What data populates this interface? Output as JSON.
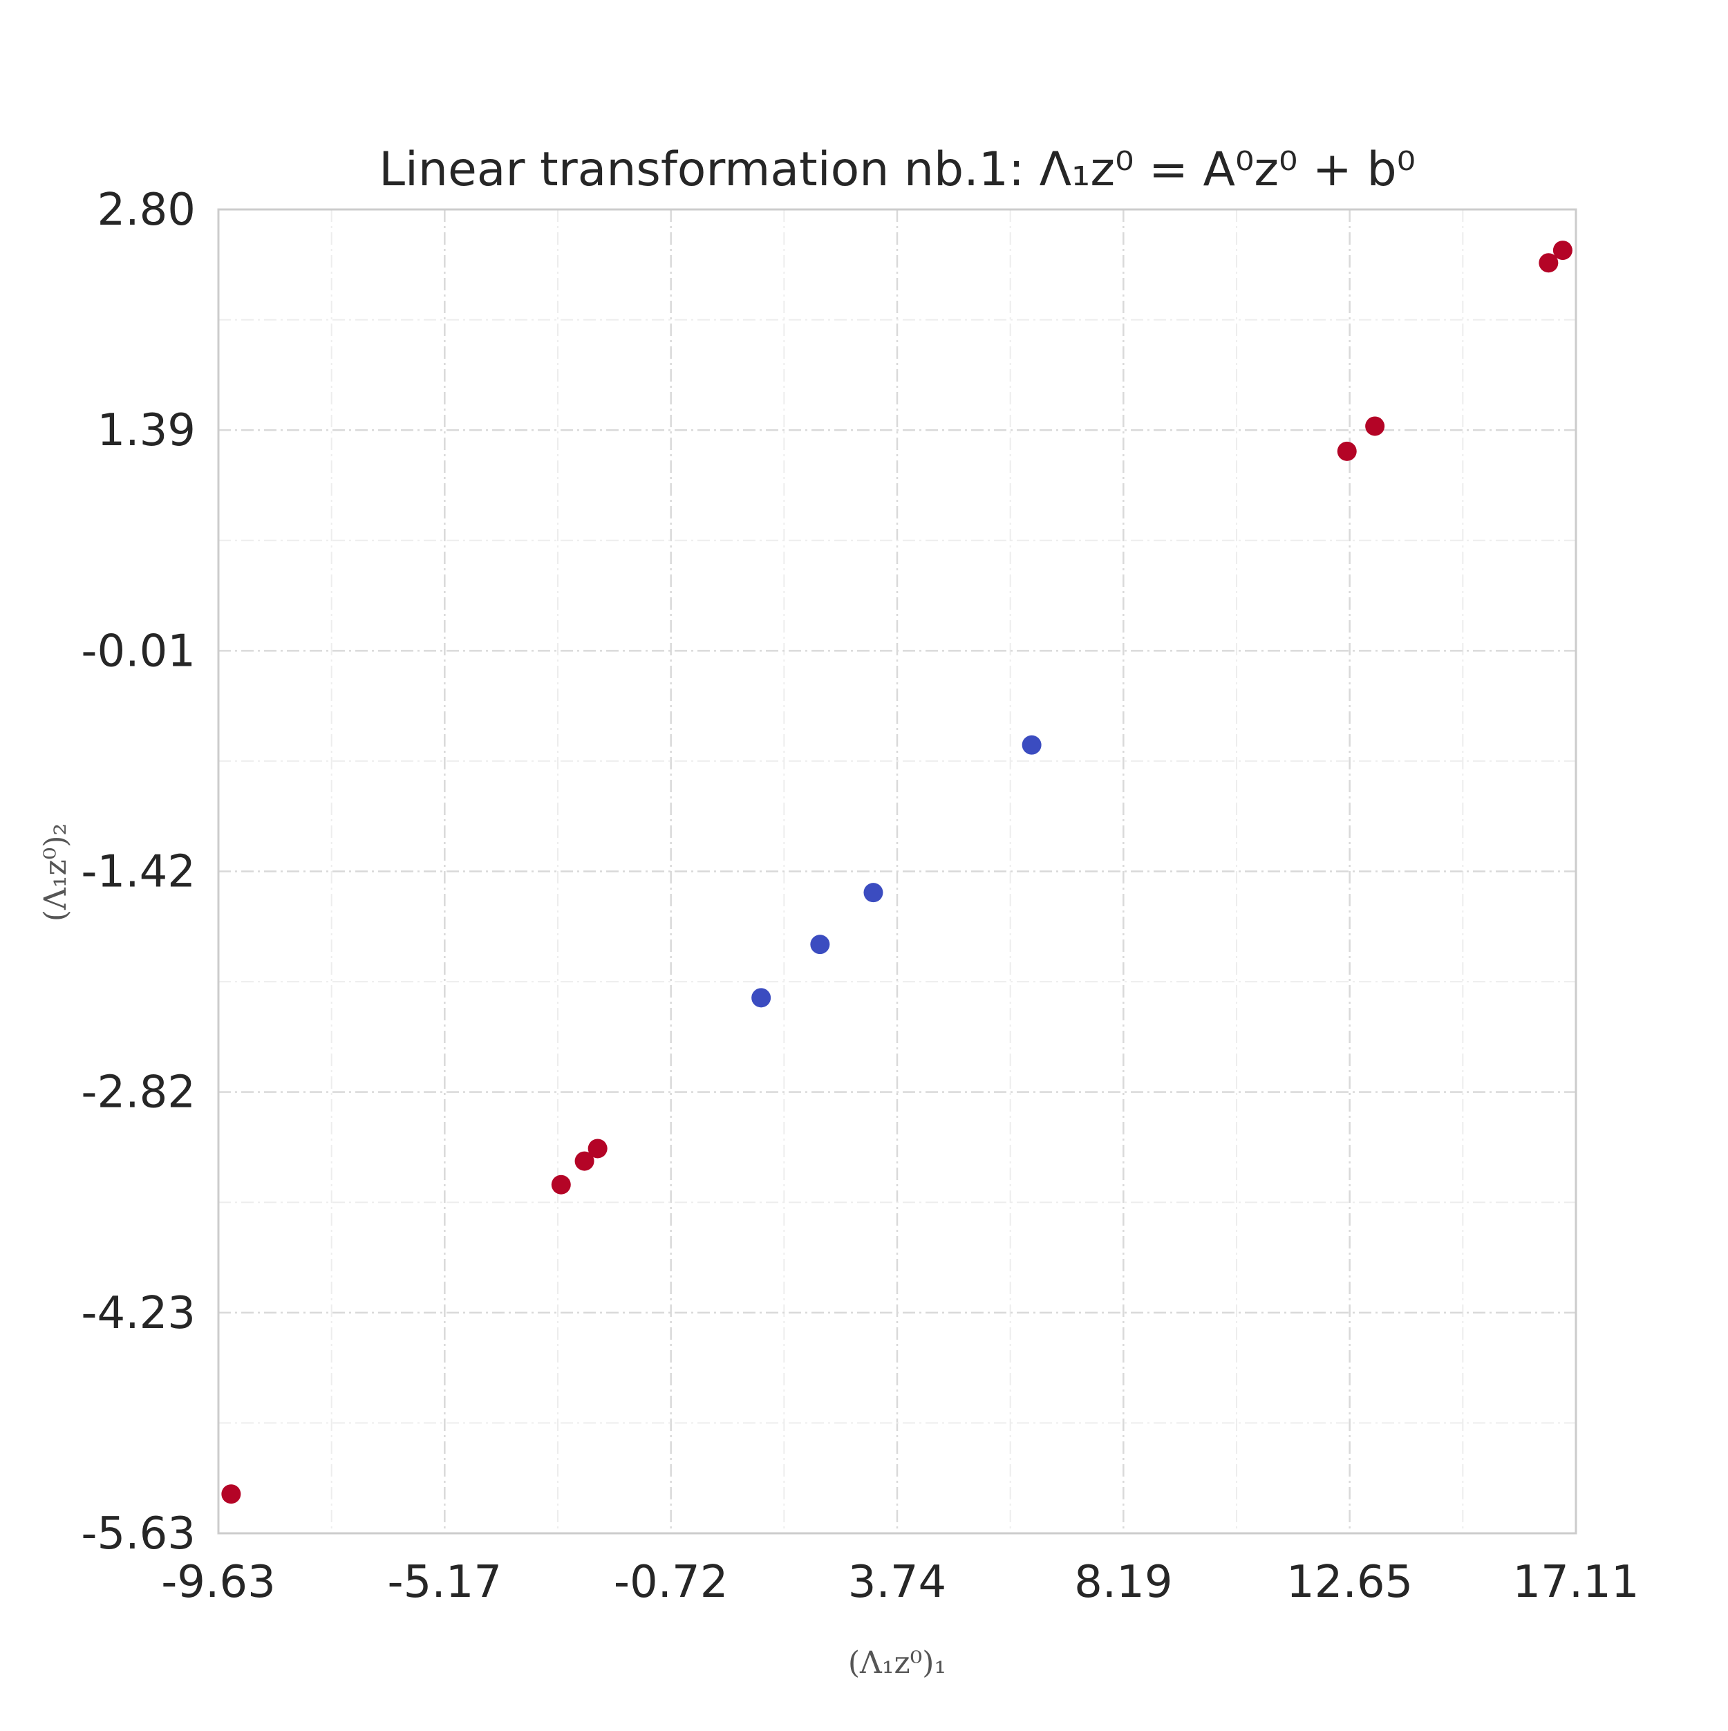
{
  "chart_data": {
    "type": "scatter",
    "title": "Linear transformation nb.1: Λ₁z⁰ = A⁰z⁰ + b⁰",
    "xlabel": "(Λ₁z⁰)₁",
    "ylabel": "(Λ₁z⁰)₂",
    "xlim": [
      -9.63,
      17.11
    ],
    "ylim": [
      -5.63,
      2.8
    ],
    "xticks": [
      "-9.63",
      "-5.17",
      "-0.72",
      "3.74",
      "8.19",
      "12.65",
      "17.11"
    ],
    "yticks": [
      "2.80",
      "1.39",
      "-0.01",
      "-1.42",
      "-2.82",
      "-4.23",
      "-5.63"
    ],
    "grid": true,
    "series": [
      {
        "color": "#b40426",
        "points": [
          {
            "x": -9.38,
            "y": -5.38
          },
          {
            "x": -2.88,
            "y": -3.41
          },
          {
            "x": -2.42,
            "y": -3.26
          },
          {
            "x": -2.16,
            "y": -3.18
          },
          {
            "x": 12.6,
            "y": 1.26
          },
          {
            "x": 13.15,
            "y": 1.42
          },
          {
            "x": 16.57,
            "y": 2.46
          },
          {
            "x": 16.85,
            "y": 2.54
          }
        ]
      },
      {
        "color": "#3b4cc0",
        "points": [
          {
            "x": 1.06,
            "y": -2.22
          },
          {
            "x": 2.22,
            "y": -1.88
          },
          {
            "x": 3.27,
            "y": -1.55
          },
          {
            "x": 6.39,
            "y": -0.61
          }
        ]
      }
    ]
  }
}
